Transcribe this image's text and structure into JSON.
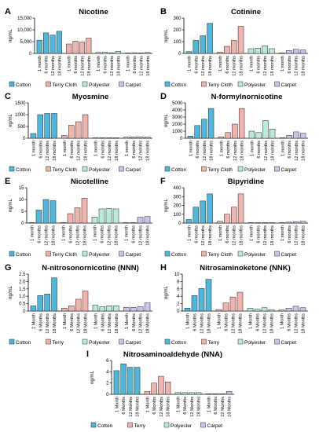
{
  "figure": {
    "panel_count": 9
  },
  "legend_colors": {
    "Cotton": "#4fb7dc",
    "Terry Cloth": "#f2b3ad",
    "Terry": "#f2b3ad",
    "Polyester": "#b8ecd8",
    "Carpet": "#c7c6ef"
  },
  "chart_data": [
    {
      "type": "bar",
      "panel_label": "A",
      "title": "Nicotine",
      "ylabel": "ng/mL",
      "ylim": [
        0,
        15000
      ],
      "yticks": [
        0,
        5000,
        10000,
        15000
      ],
      "ytick_labels": [
        "0",
        "5,000",
        "10,000",
        "15,000"
      ],
      "categories": [
        "1 month",
        "6 months",
        "12 months",
        "18 months"
      ],
      "series": [
        {
          "name": "Cotton",
          "values": [
            5600,
            8700,
            7800,
            9400
          ]
        },
        {
          "name": "Terry Cloth",
          "values": [
            4000,
            5200,
            4800,
            6500
          ]
        },
        {
          "name": "Polyester",
          "values": [
            400,
            500,
            300,
            900
          ]
        },
        {
          "name": "Carpet",
          "values": [
            200,
            300,
            200,
            400
          ]
        }
      ]
    },
    {
      "type": "bar",
      "panel_label": "B",
      "title": "Cotinine",
      "ylabel": "ng/mL",
      "ylim": [
        0,
        300
      ],
      "yticks": [
        0,
        100,
        200,
        300
      ],
      "ytick_labels": [
        "0",
        "100",
        "200",
        "300"
      ],
      "categories": [
        "1 month",
        "6 months",
        "12 months",
        "18 months"
      ],
      "series": [
        {
          "name": "Cotton",
          "values": [
            15,
            110,
            150,
            255
          ]
        },
        {
          "name": "Terry Cloth",
          "values": [
            10,
            60,
            110,
            230
          ]
        },
        {
          "name": "Polyester",
          "values": [
            40,
            45,
            65,
            40
          ]
        },
        {
          "name": "Carpet",
          "values": [
            5,
            25,
            35,
            30
          ]
        }
      ]
    },
    {
      "type": "bar",
      "panel_label": "C",
      "title": "Myosmine",
      "ylabel": "ng/mL",
      "ylim": [
        0,
        1500
      ],
      "yticks": [
        0,
        500,
        1000,
        1500
      ],
      "ytick_labels": [
        "0",
        "500",
        "1000",
        "1500"
      ],
      "categories": [
        "1 month",
        "6 months",
        "12 months",
        "18 months"
      ],
      "series": [
        {
          "name": "Cotton",
          "values": [
            200,
            1000,
            1050,
            1050
          ]
        },
        {
          "name": "Terry Cloth",
          "values": [
            120,
            550,
            700,
            1000
          ]
        },
        {
          "name": "Polyester",
          "values": [
            10,
            10,
            10,
            10
          ]
        },
        {
          "name": "Carpet",
          "values": [
            50,
            60,
            60,
            50
          ]
        }
      ]
    },
    {
      "type": "bar",
      "panel_label": "D",
      "title": "N-formylnornicotine",
      "ylabel": "ng/mL",
      "ylim": [
        0,
        5000
      ],
      "yticks": [
        0,
        1000,
        2000,
        3000,
        4000,
        5000
      ],
      "ytick_labels": [
        "0",
        "1000",
        "2000",
        "3000",
        "4000",
        "5000"
      ],
      "categories": [
        "1 month",
        "6 months",
        "12 months",
        "18 months"
      ],
      "series": [
        {
          "name": "Cotton",
          "values": [
            300,
            1800,
            2700,
            4200
          ]
        },
        {
          "name": "Terry Cloth",
          "values": [
            200,
            800,
            2000,
            4200
          ]
        },
        {
          "name": "Polyester",
          "values": [
            1000,
            800,
            2500,
            1300
          ]
        },
        {
          "name": "Carpet",
          "values": [
            50,
            400,
            900,
            700
          ]
        }
      ]
    },
    {
      "type": "bar",
      "panel_label": "E",
      "title": "Nicotelline",
      "ylabel": "ng/mL",
      "ylim": [
        0,
        15
      ],
      "yticks": [
        0,
        5,
        10,
        15
      ],
      "ytick_labels": [
        "0",
        "5",
        "10",
        "15"
      ],
      "categories": [
        "1 month",
        "6 months",
        "12 months",
        "18 months"
      ],
      "series": [
        {
          "name": "Cotton",
          "values": [
            0,
            5.5,
            10,
            9.5
          ]
        },
        {
          "name": "Terry Cloth",
          "values": [
            0,
            4,
            6.5,
            10.5
          ]
        },
        {
          "name": "Polyester",
          "values": [
            2.5,
            6,
            6.2,
            6
          ]
        },
        {
          "name": "Carpet",
          "values": [
            0,
            0,
            2.5,
            2.8
          ]
        }
      ]
    },
    {
      "type": "bar",
      "panel_label": "F",
      "title": "Bipyridine",
      "ylabel": "ng/mL",
      "ylim": [
        0,
        400
      ],
      "yticks": [
        0,
        100,
        200,
        300,
        400
      ],
      "ytick_labels": [
        "0",
        "100",
        "200",
        "300",
        "400"
      ],
      "categories": [
        "1 month",
        "6 months",
        "12 months",
        "18 months"
      ],
      "series": [
        {
          "name": "Cotton",
          "values": [
            40,
            180,
            250,
            330
          ]
        },
        {
          "name": "Terry Cloth",
          "values": [
            20,
            100,
            180,
            330
          ]
        },
        {
          "name": "Polyester",
          "values": [
            5,
            5,
            5,
            5
          ]
        },
        {
          "name": "Carpet",
          "values": [
            5,
            10,
            15,
            20
          ]
        }
      ]
    },
    {
      "type": "bar",
      "panel_label": "G",
      "title": "N-nitrosonornicotine (NNN)",
      "ylabel": "ng/mL",
      "ylim": [
        0,
        2.5
      ],
      "yticks": [
        0,
        0.5,
        1.0,
        1.5,
        2.0,
        2.5
      ],
      "ytick_labels": [
        "0",
        "0.5",
        "1.0",
        "1.5",
        "2.0",
        "2.5"
      ],
      "categories": [
        "1 Month",
        "6 Months",
        "12 Months",
        "18 Months"
      ],
      "series": [
        {
          "name": "Cotton",
          "values": [
            0.35,
            1.05,
            1.15,
            2.25
          ]
        },
        {
          "name": "Terry",
          "values": [
            0.2,
            0.35,
            0.8,
            1.35
          ]
        },
        {
          "name": "Polyester",
          "values": [
            0.4,
            0.3,
            0.35,
            0.35
          ]
        },
        {
          "name": "Carpet",
          "values": [
            0.25,
            0.25,
            0.3,
            0.55
          ]
        }
      ]
    },
    {
      "type": "bar",
      "panel_label": "H",
      "title": "Nitrosaminoketone (NNK)",
      "ylabel": "ng/mL",
      "ylim": [
        0,
        10
      ],
      "yticks": [
        0,
        2,
        4,
        6,
        8,
        10
      ],
      "ytick_labels": [
        "0",
        "2",
        "4",
        "6",
        "8",
        "10"
      ],
      "categories": [
        "1 Month",
        "6 Months",
        "12 Months",
        "18 Months"
      ],
      "series": [
        {
          "name": "Cotton",
          "values": [
            0.8,
            4.2,
            6.1,
            8.6
          ]
        },
        {
          "name": "Terry",
          "values": [
            0.4,
            2.2,
            3.8,
            5.1
          ]
        },
        {
          "name": "Polyester",
          "values": [
            0.8,
            0.5,
            0.9,
            0.4
          ]
        },
        {
          "name": "Carpet",
          "values": [
            0.3,
            0.8,
            1.3,
            0.9
          ]
        }
      ]
    },
    {
      "type": "bar",
      "panel_label": "I",
      "title": "Nitrosaminoaldehyde (NNA)",
      "ylabel": "ng/mL",
      "ylim": [
        0,
        6
      ],
      "yticks": [
        0,
        2,
        4,
        6
      ],
      "ytick_labels": [
        "0",
        "2",
        "4",
        "6"
      ],
      "categories": [
        "1 Month",
        "6 Months",
        "12 Months",
        "18 Months"
      ],
      "series": [
        {
          "name": "Cotton",
          "values": [
            4.2,
            5.4,
            4.8,
            4.8
          ]
        },
        {
          "name": "Terry",
          "values": [
            0.5,
            2.0,
            3.2,
            2.2
          ]
        },
        {
          "name": "Polyester",
          "values": [
            0.3,
            0.3,
            0.3,
            0.3
          ]
        },
        {
          "name": "Carpet",
          "values": [
            0.1,
            0.1,
            0.1,
            0.5
          ]
        }
      ]
    }
  ]
}
